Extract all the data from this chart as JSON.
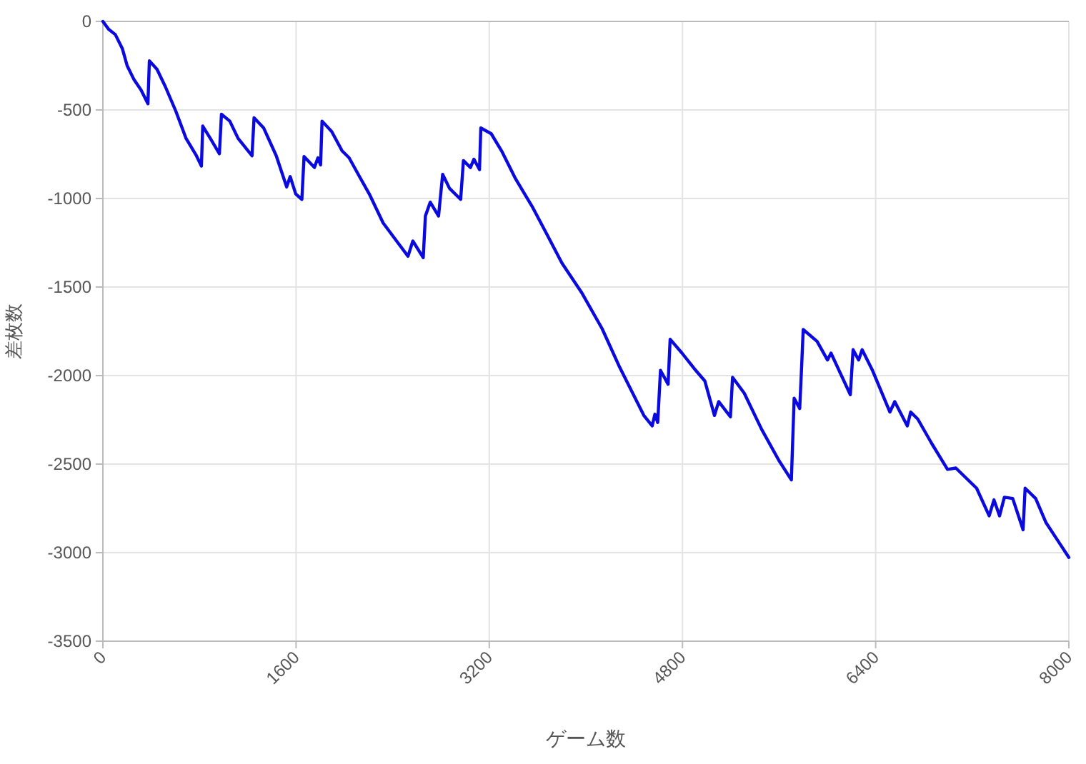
{
  "chart_data": {
    "type": "line",
    "xlabel": "ゲーム数",
    "ylabel": "差枚数",
    "xlim": [
      0,
      8000
    ],
    "xticks": [
      0,
      1600,
      3200,
      4800,
      6400,
      8000
    ],
    "ylim": [
      -3500,
      0
    ],
    "yticks": [
      -3500,
      -3000,
      -2500,
      -2000,
      -1500,
      -1000,
      -500,
      0
    ],
    "grid": true,
    "marker": "none",
    "line_style": "solid",
    "series": [
      {
        "color": "#0a0ae0",
        "x": [
          0,
          46,
          103,
          161,
          201,
          258,
          316,
          373,
          385,
          448,
          517,
          603,
          689,
          775,
          816,
          827,
          890,
          965,
          982,
          1051,
          1120,
          1235,
          1252,
          1332,
          1436,
          1522,
          1551,
          1597,
          1648,
          1666,
          1752,
          1781,
          1803,
          1815,
          1895,
          1981,
          2039,
          2125,
          2206,
          2321,
          2441,
          2527,
          2567,
          2653,
          2671,
          2711,
          2780,
          2814,
          2871,
          2963,
          2986,
          3044,
          3073,
          3119,
          3130,
          3216,
          3302,
          3417,
          3561,
          3676,
          3802,
          3963,
          4135,
          4279,
          4394,
          4480,
          4549,
          4572,
          4595,
          4618,
          4681,
          4698,
          4796,
          4910,
          4985,
          5065,
          5100,
          5197,
          5215,
          5312,
          5456,
          5599,
          5702,
          5725,
          5771,
          5788,
          5800,
          5915,
          6001,
          6030,
          6190,
          6213,
          6259,
          6288,
          6374,
          6518,
          6558,
          6662,
          6690,
          6748,
          6863,
          6995,
          7064,
          7236,
          7340,
          7380,
          7426,
          7466,
          7535,
          7621,
          7638,
          7725,
          7811,
          7925,
          8000
        ],
        "values": [
          0,
          -43,
          -74,
          -153,
          -250,
          -329,
          -387,
          -465,
          -223,
          -270,
          -368,
          -505,
          -661,
          -759,
          -817,
          -591,
          -661,
          -747,
          -524,
          -563,
          -661,
          -759,
          -544,
          -602,
          -759,
          -935,
          -876,
          -974,
          -1005,
          -763,
          -825,
          -770,
          -810,
          -563,
          -622,
          -731,
          -770,
          -876,
          -974,
          -1138,
          -1248,
          -1326,
          -1240,
          -1334,
          -1099,
          -1021,
          -1099,
          -864,
          -943,
          -1005,
          -786,
          -825,
          -778,
          -837,
          -602,
          -634,
          -731,
          -888,
          -1052,
          -1201,
          -1365,
          -1529,
          -1736,
          -1952,
          -2108,
          -2225,
          -2284,
          -2218,
          -2265,
          -1971,
          -2049,
          -1795,
          -1873,
          -1971,
          -2030,
          -2225,
          -2147,
          -2233,
          -2010,
          -2100,
          -2304,
          -2480,
          -2589,
          -2128,
          -2186,
          -1932,
          -1740,
          -1807,
          -1912,
          -1873,
          -2108,
          -1854,
          -1912,
          -1854,
          -1971,
          -2206,
          -2147,
          -2284,
          -2206,
          -2245,
          -2382,
          -2530,
          -2522,
          -2636,
          -2792,
          -2702,
          -2792,
          -2687,
          -2694,
          -2871,
          -2636,
          -2694,
          -2831,
          -2949,
          -3027
        ]
      }
    ]
  }
}
